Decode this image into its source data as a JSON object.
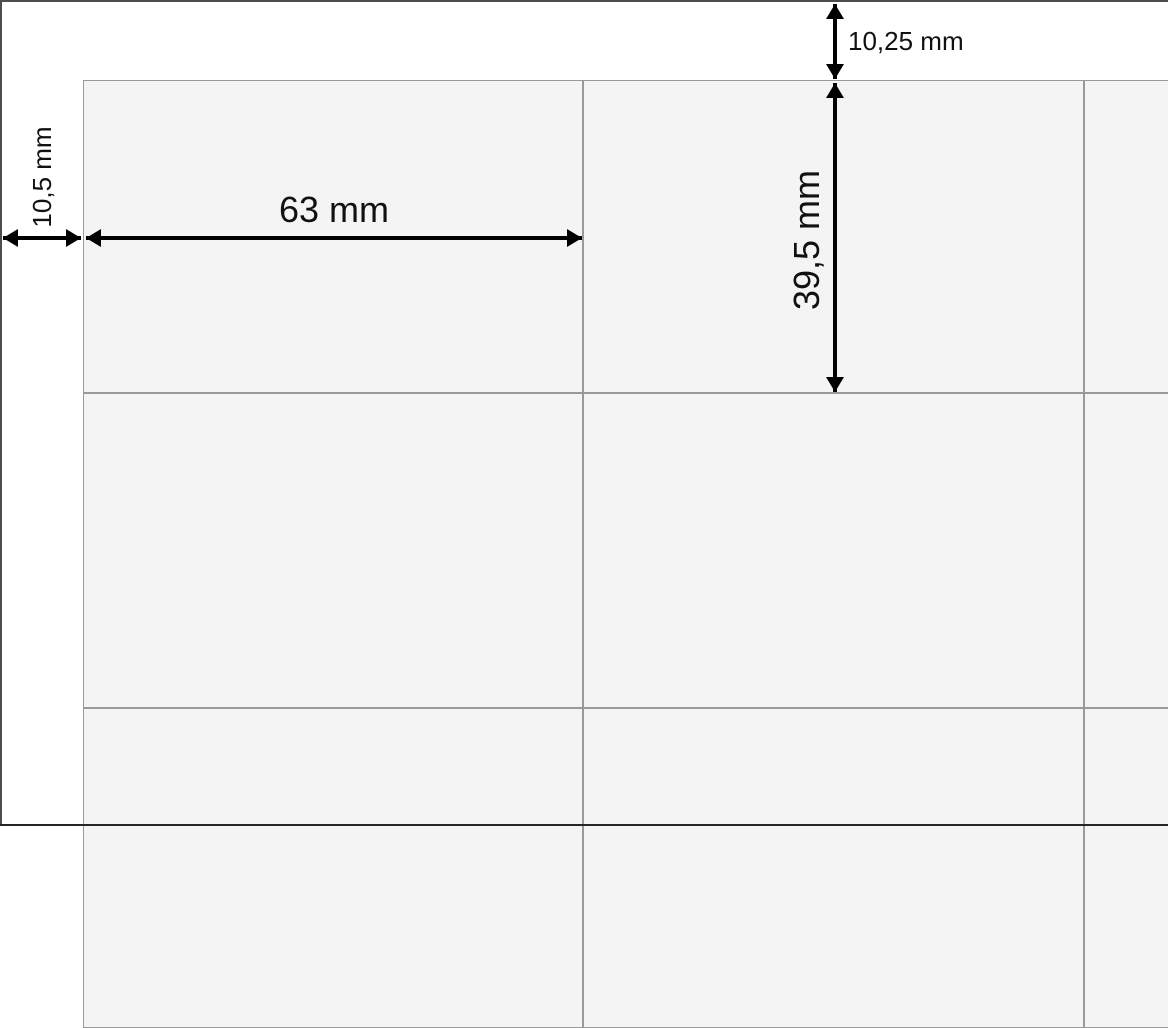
{
  "dimension_labels": {
    "top_margin": "10,25 mm",
    "left_margin": "10,5 mm",
    "cell_width": "63 mm",
    "cell_height": "39,5 mm"
  },
  "grid": {
    "visible_columns": 3,
    "visible_rows": 3
  },
  "colors": {
    "page_background": "#ffffff",
    "frame_line": "#4d4d4d",
    "cell_fill": "#f4f4f4",
    "cell_border": "#999999",
    "arrow": "#000000",
    "text": "#111111"
  }
}
